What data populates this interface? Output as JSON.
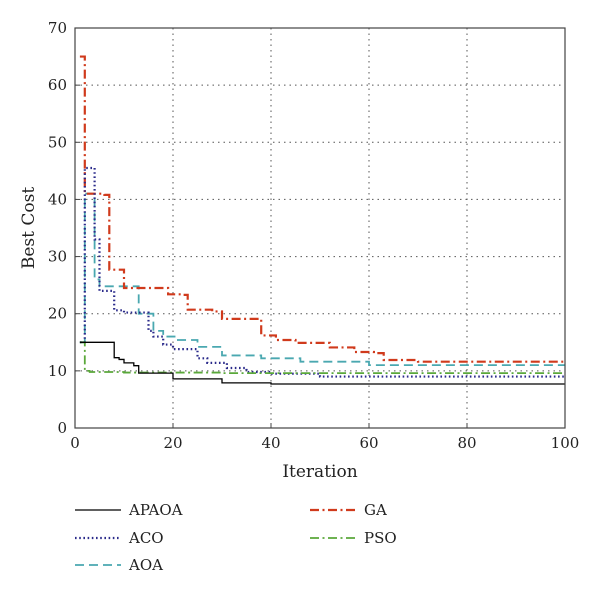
{
  "chart_data": {
    "type": "line",
    "title": "",
    "xlabel": "Iteration",
    "ylabel": "Best Cost",
    "xlim": [
      0,
      100
    ],
    "ylim": [
      0,
      70
    ],
    "xticks": [
      0,
      20,
      40,
      60,
      80,
      100
    ],
    "yticks": [
      0,
      10,
      20,
      30,
      40,
      50,
      60,
      70
    ],
    "grid": true,
    "legend_position": "bottom",
    "series": [
      {
        "name": "APAOA",
        "color": "#000000",
        "style": "solid",
        "x": [
          1,
          7,
          8,
          9,
          10,
          12,
          13,
          20,
          26,
          30,
          40,
          100
        ],
        "y": [
          15,
          15,
          12.3,
          12.0,
          11.4,
          10.9,
          9.6,
          8.6,
          8.6,
          7.9,
          7.7,
          7.7
        ]
      },
      {
        "name": "ACO",
        "color": "#2a2a8a",
        "style": "dotted",
        "x": [
          1,
          2,
          3,
          4,
          5,
          7,
          8,
          10,
          14,
          15,
          16,
          18,
          20,
          25,
          27,
          31,
          35,
          40,
          50,
          100
        ],
        "y": [
          15,
          45.5,
          45.5,
          33,
          24,
          24,
          20.6,
          20.2,
          20.2,
          17,
          16,
          14.6,
          13.8,
          12.2,
          11.4,
          10.5,
          9.8,
          9.5,
          9.0,
          9.0
        ]
      },
      {
        "name": "AOA",
        "color": "#4aa8b0",
        "style": "dashed",
        "x": [
          1,
          2,
          4,
          5,
          11,
          13,
          16,
          18,
          21,
          25,
          30,
          38,
          46,
          60,
          100
        ],
        "y": [
          15,
          41,
          26,
          24.8,
          24.8,
          20,
          17,
          16,
          15.4,
          14.2,
          12.7,
          12.2,
          11.6,
          11.0,
          11.0
        ]
      },
      {
        "name": "GA",
        "color": "#d03a1c",
        "style": "dashdot",
        "x": [
          1,
          2,
          5,
          6,
          7,
          9,
          10,
          19,
          22,
          23,
          28,
          30,
          38,
          41,
          45,
          52,
          57,
          61,
          63,
          70,
          100
        ],
        "y": [
          65,
          41,
          41,
          40.8,
          27.7,
          27.7,
          24.5,
          23.4,
          23.3,
          20.7,
          20.4,
          19.1,
          16.2,
          15.4,
          14.9,
          14.1,
          13.3,
          13.1,
          11.9,
          11.6,
          11.6
        ]
      },
      {
        "name": "PSO",
        "color": "#5aa83a",
        "style": "dashdot",
        "x": [
          1,
          2,
          3,
          10,
          30,
          100
        ],
        "y": [
          15,
          10.0,
          9.8,
          9.7,
          9.6,
          9.6
        ]
      }
    ]
  }
}
